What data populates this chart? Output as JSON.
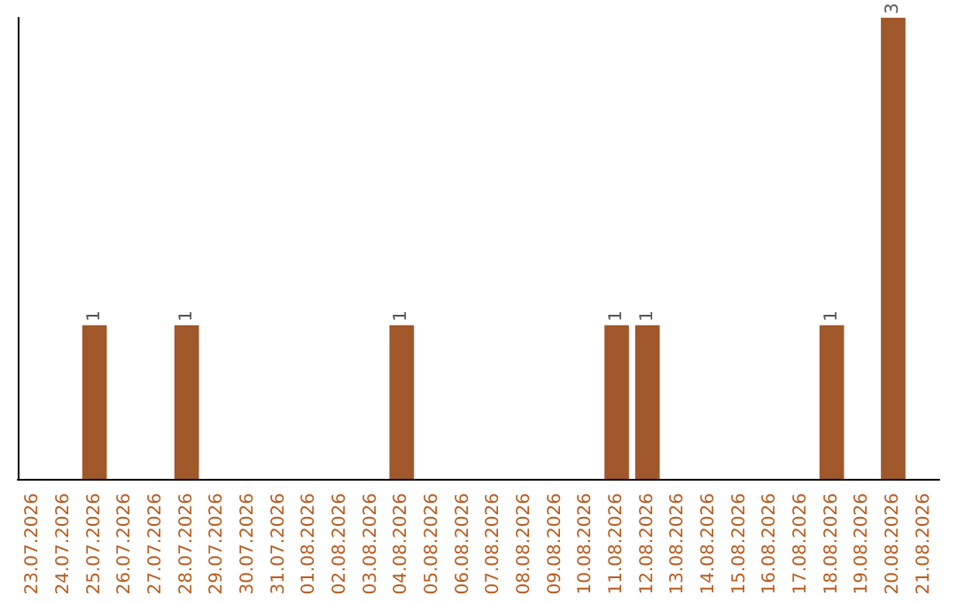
{
  "chart_data": {
    "type": "bar",
    "categories": [
      "23.07.2026",
      "24.07.2026",
      "25.07.2026",
      "26.07.2026",
      "27.07.2026",
      "28.07.2026",
      "29.07.2026",
      "30.07.2026",
      "31.07.2026",
      "01.08.2026",
      "02.08.2026",
      "03.08.2026",
      "04.08.2026",
      "05.08.2026",
      "06.08.2026",
      "07.08.2026",
      "08.08.2026",
      "09.08.2026",
      "10.08.2026",
      "11.08.2026",
      "12.08.2026",
      "13.08.2026",
      "14.08.2026",
      "15.08.2026",
      "16.08.2026",
      "17.08.2026",
      "18.08.2026",
      "19.08.2026",
      "20.08.2026",
      "21.08.2026"
    ],
    "values": [
      0,
      0,
      1,
      0,
      0,
      1,
      0,
      0,
      0,
      0,
      0,
      0,
      1,
      0,
      0,
      0,
      0,
      0,
      0,
      1,
      1,
      0,
      0,
      0,
      0,
      0,
      1,
      0,
      3,
      0
    ],
    "value_labels": [
      null,
      null,
      "1",
      null,
      null,
      "1",
      null,
      null,
      null,
      null,
      null,
      null,
      "1",
      null,
      null,
      null,
      null,
      null,
      null,
      "1",
      "1",
      null,
      null,
      null,
      null,
      null,
      "1",
      null,
      "3",
      null
    ],
    "color": "#a0582a",
    "tick_labels": "x"
  }
}
